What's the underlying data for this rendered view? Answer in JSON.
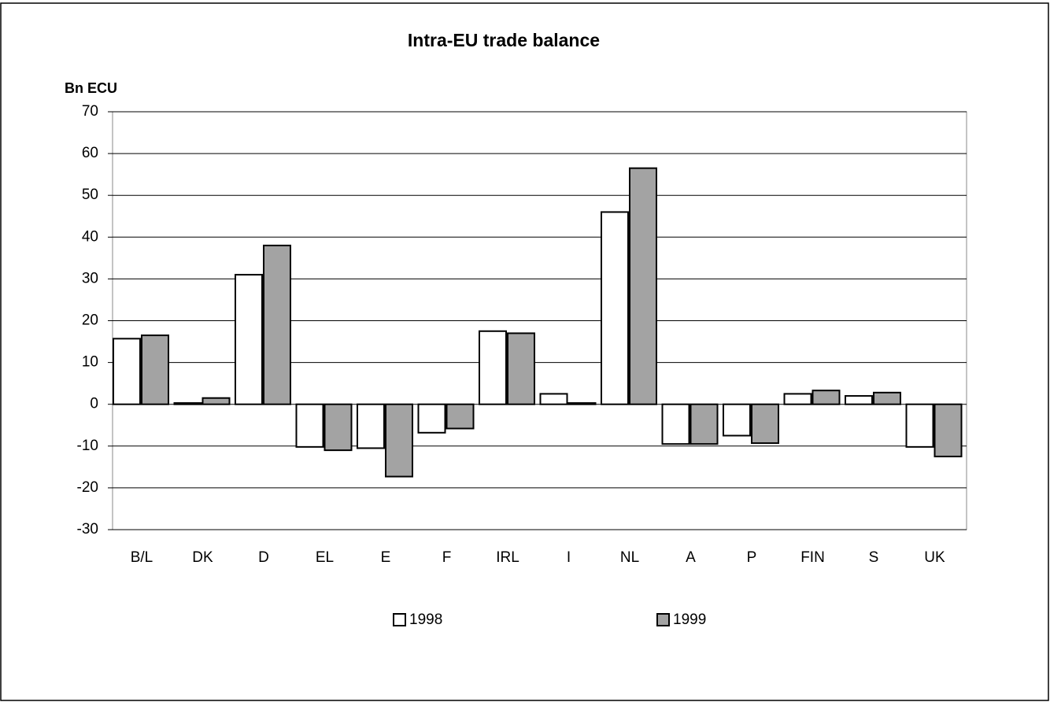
{
  "chart_data": {
    "type": "bar",
    "title": "Intra-EU trade balance",
    "y_label": "Bn ECU",
    "categories": [
      "B/L",
      "DK",
      "D",
      "EL",
      "E",
      "F",
      "IRL",
      "I",
      "NL",
      "A",
      "P",
      "FIN",
      "S",
      "UK"
    ],
    "series": [
      {
        "name": "1998",
        "color": "#ffffff",
        "values": [
          15.7,
          0.3,
          31,
          -10.2,
          -10.5,
          -6.8,
          17.5,
          2.5,
          46,
          -9.5,
          -7.5,
          2.5,
          2,
          -10.2
        ]
      },
      {
        "name": "1999",
        "color": "#a3a3a3",
        "values": [
          16.5,
          1.5,
          38,
          -11,
          -17.3,
          -5.8,
          17,
          0.3,
          56.5,
          -9.5,
          -9.3,
          3.3,
          2.8,
          -12.5
        ]
      }
    ],
    "ylim": [
      -30,
      70
    ],
    "yticks": [
      -30,
      -20,
      -10,
      0,
      10,
      20,
      30,
      40,
      50,
      60,
      70
    ],
    "grid": true,
    "legend": "bottom"
  }
}
